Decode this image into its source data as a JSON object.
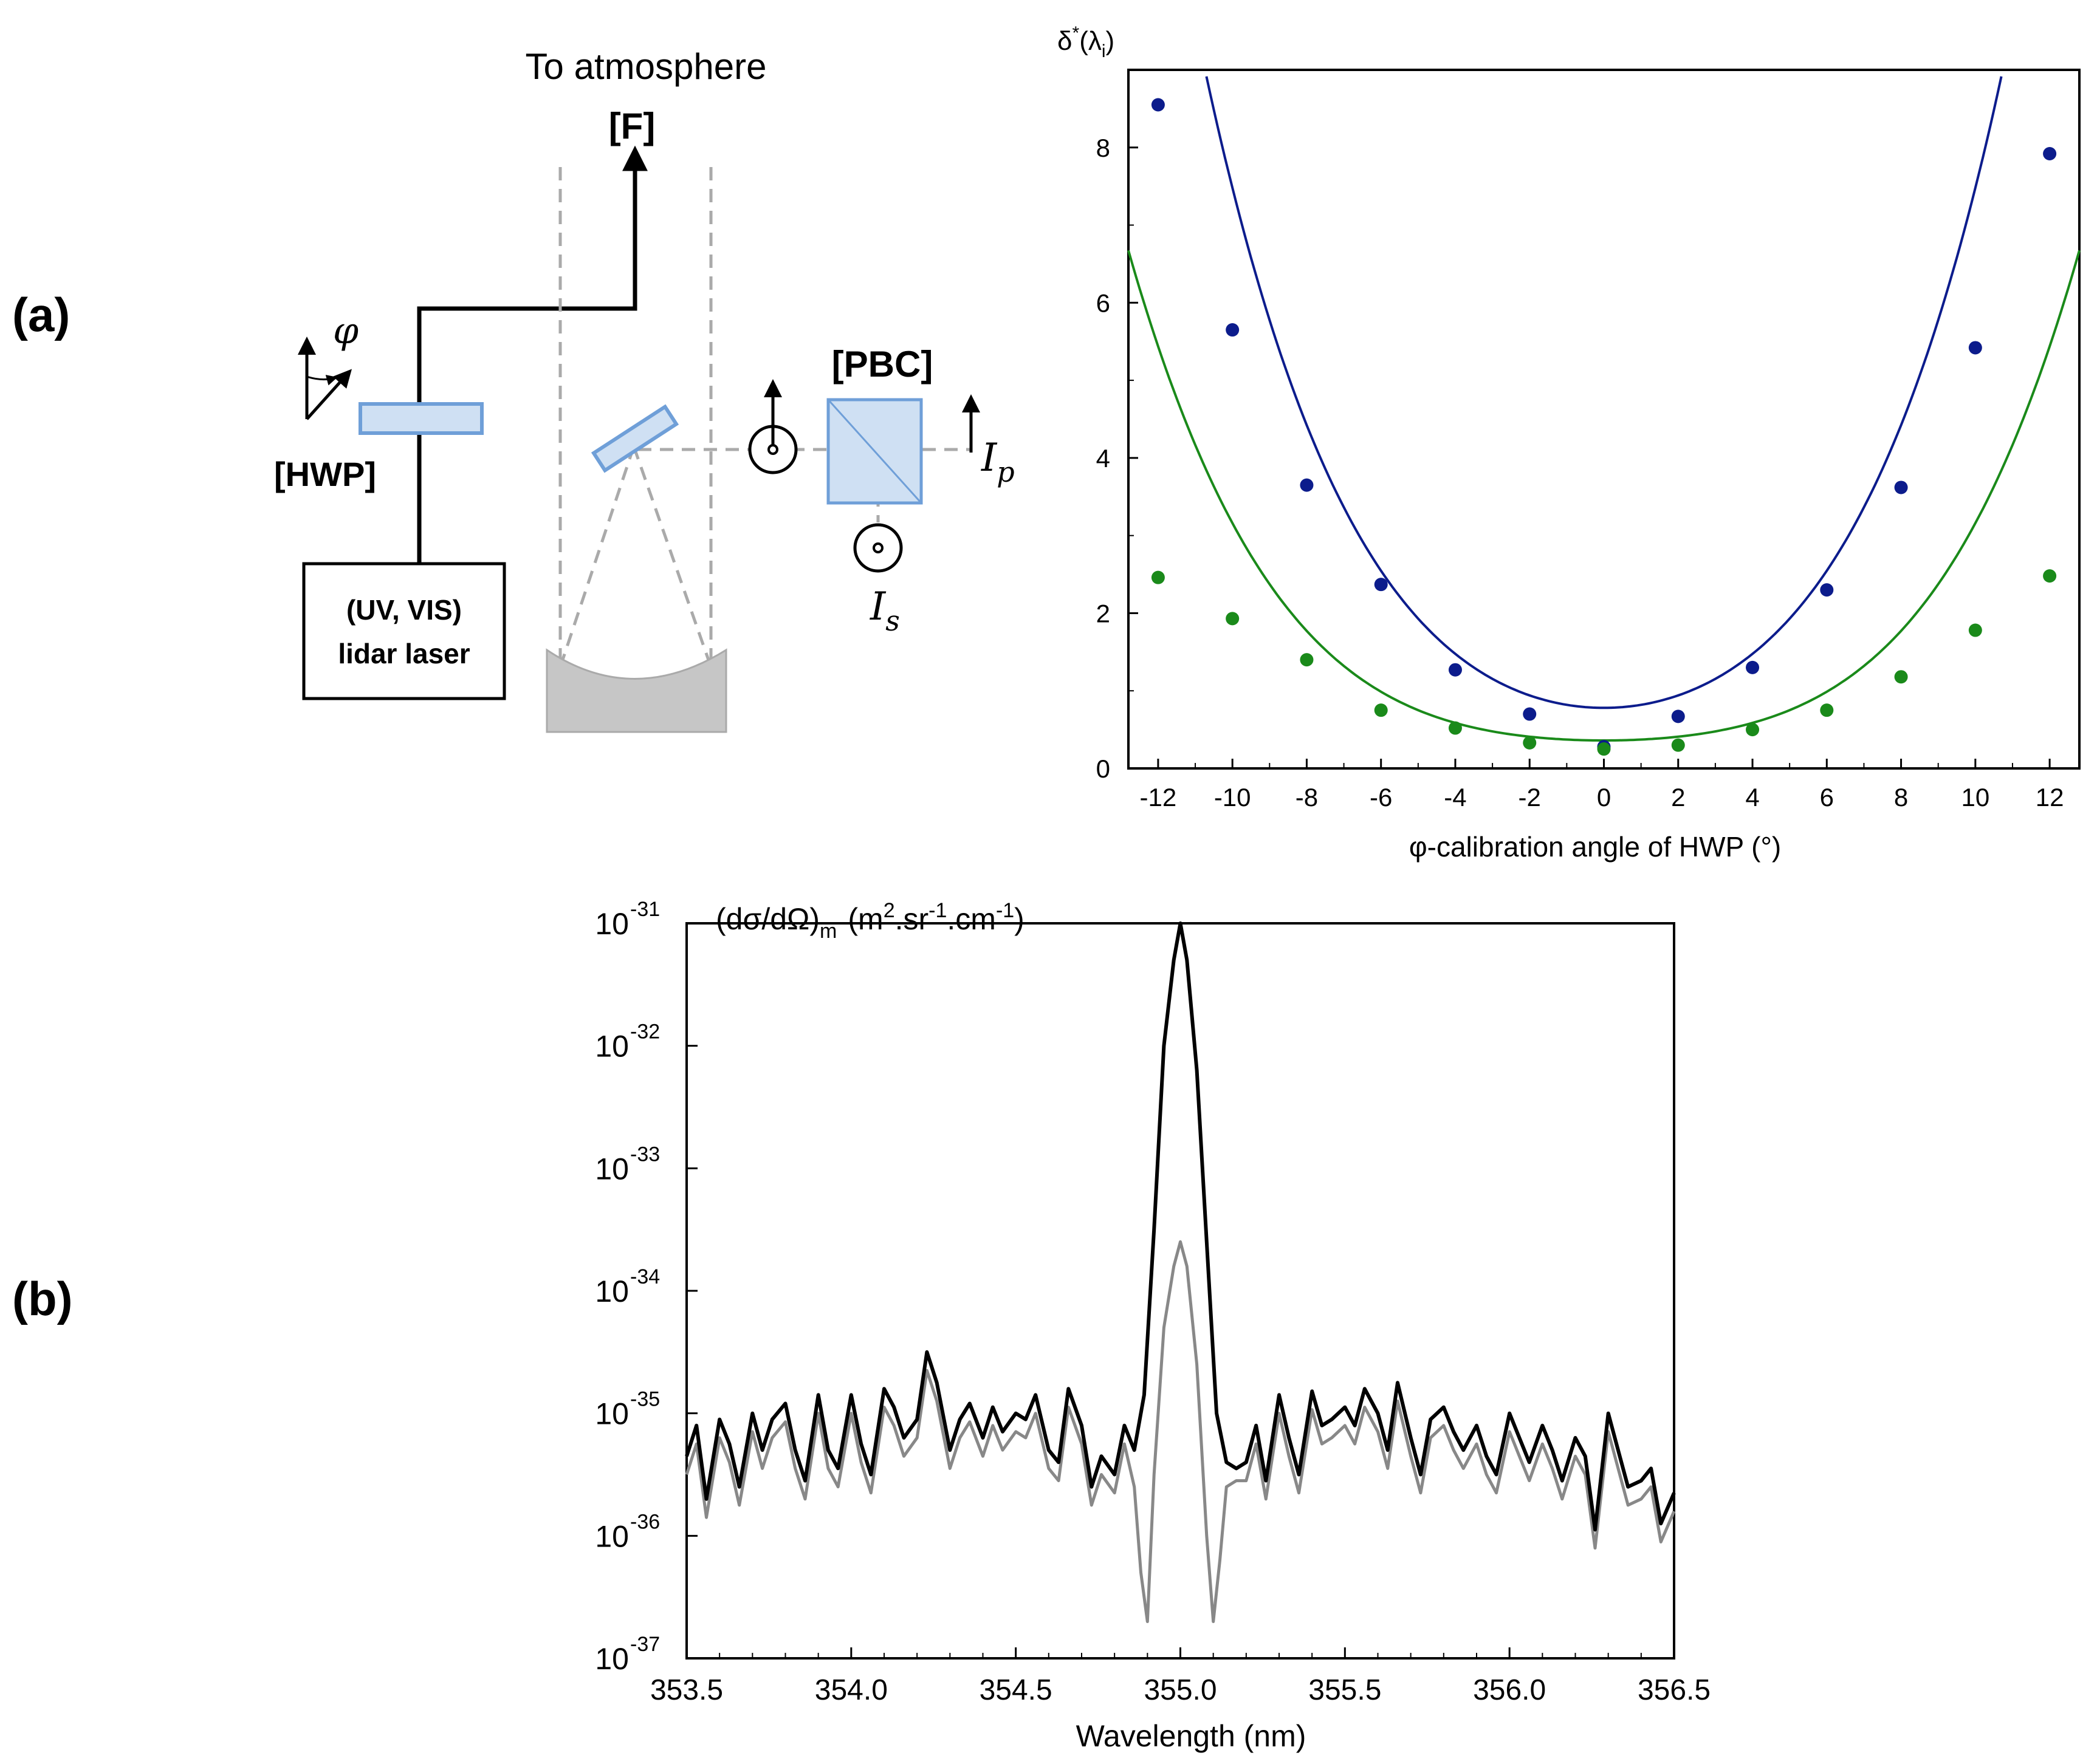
{
  "panels": {
    "a_label": "(a)",
    "b_label": "(b)"
  },
  "diagram": {
    "to_atmosphere": "To atmosphere",
    "f_label": "[F]",
    "hwp_label": "[HWP]",
    "pbc_label": "[PBC]",
    "laser_line1": "(UV, VIS)",
    "laser_line2": "lidar laser",
    "phi_symbol": "φ",
    "ip_main": "I",
    "ip_sub": "p",
    "is_main": "I",
    "is_sub": "s"
  },
  "chart_data": [
    {
      "type": "scatter",
      "id": "top",
      "title": "",
      "ylabel_main": "δ",
      "ylabel_sup": "*",
      "ylabel_rest": "(λ",
      "ylabel_sub": "i",
      "ylabel_close": ")",
      "xlabel": "φ-calibration angle of HWP (°)",
      "xlim": [
        -12.8,
        12.8
      ],
      "ylim": [
        0,
        9
      ],
      "xticks": [
        -12,
        -10,
        -8,
        -6,
        -4,
        -2,
        0,
        2,
        4,
        6,
        8,
        10,
        12
      ],
      "xtick_labels": [
        "-12",
        "-10",
        "-8",
        "-6",
        "-4",
        "-2",
        "0",
        "2",
        "4",
        "6",
        "8",
        "10",
        "12"
      ],
      "yticks": [
        0,
        2,
        4,
        6,
        8
      ],
      "ytick_labels": [
        "0",
        "2",
        "4",
        "6",
        "8"
      ],
      "series": [
        {
          "name": "blue",
          "color": "#0c1c8c",
          "x": [
            -12,
            -10,
            -8,
            -6,
            -4,
            -2,
            0,
            2,
            4,
            6,
            8,
            10,
            12
          ],
          "y": [
            8.55,
            5.65,
            3.65,
            2.37,
            1.27,
            0.7,
            0.28,
            0.67,
            1.3,
            2.3,
            3.62,
            5.42,
            7.92
          ],
          "fit": {
            "a": 0.00028,
            "b": 0.039,
            "c": 0.78
          }
        },
        {
          "name": "green",
          "color": "#1a8a1a",
          "x": [
            -12,
            -10,
            -8,
            -6,
            -4,
            -2,
            0,
            2,
            4,
            6,
            8,
            10,
            12
          ],
          "y": [
            2.46,
            1.93,
            1.4,
            0.75,
            0.52,
            0.33,
            0.25,
            0.3,
            0.5,
            0.75,
            1.18,
            1.78,
            2.48
          ],
          "fit": {
            "a": 0.000165,
            "b": 0.0115,
            "c": 0.36
          }
        }
      ]
    },
    {
      "type": "line",
      "id": "bottom",
      "title": "",
      "ylabel_main": "(dσ/dΩ)",
      "ylabel_sub": "m",
      "ylabel_units": "(m",
      "ylabel_units_2": ".sr",
      "ylabel_units_3": ".cm",
      "ylabel_units_close": ")",
      "ylabel_sup_2": "2",
      "ylabel_sup_m1": "-1",
      "xlabel": "Wavelength (nm)",
      "xlim": [
        353.5,
        356.5
      ],
      "yscale": "log",
      "ylim_exp": [
        -37,
        -31
      ],
      "xticks": [
        353.5,
        354.0,
        354.5,
        355.0,
        355.5,
        356.0,
        356.5
      ],
      "xtick_labels": [
        "353.5",
        "354.0",
        "354.5",
        "355.0",
        "355.5",
        "356.0",
        "356.5"
      ],
      "ytick_base": "10",
      "ytick_exps": [
        "-31",
        "-32",
        "-33",
        "-34",
        "-35",
        "-36",
        "-37"
      ],
      "series": [
        {
          "name": "black",
          "color": "#000000",
          "x": [
            353.5,
            353.53,
            353.56,
            353.6,
            353.63,
            353.66,
            353.7,
            353.73,
            353.76,
            353.8,
            353.83,
            353.86,
            353.9,
            353.93,
            353.96,
            354.0,
            354.03,
            354.06,
            354.1,
            354.13,
            354.16,
            354.2,
            354.23,
            354.26,
            354.3,
            354.33,
            354.36,
            354.4,
            354.43,
            354.46,
            354.5,
            354.53,
            354.56,
            354.6,
            354.63,
            354.66,
            354.7,
            354.73,
            354.76,
            354.8,
            354.83,
            354.86,
            354.89,
            354.92,
            354.95,
            354.98,
            355.0,
            355.02,
            355.05,
            355.08,
            355.11,
            355.14,
            355.17,
            355.2,
            355.23,
            355.26,
            355.3,
            355.33,
            355.36,
            355.4,
            355.43,
            355.46,
            355.5,
            355.53,
            355.56,
            355.6,
            355.63,
            355.66,
            355.7,
            355.73,
            355.76,
            355.8,
            355.83,
            355.86,
            355.9,
            355.93,
            355.96,
            356.0,
            356.03,
            356.06,
            356.1,
            356.13,
            356.16,
            356.2,
            356.23,
            356.26,
            356.3,
            356.33,
            356.36,
            356.4,
            356.43,
            356.46,
            356.5
          ],
          "y_exp": [
            -35.35,
            -35.1,
            -35.7,
            -35.05,
            -35.25,
            -35.6,
            -35.0,
            -35.3,
            -35.05,
            -34.92,
            -35.3,
            -35.55,
            -34.85,
            -35.3,
            -35.45,
            -34.85,
            -35.25,
            -35.5,
            -34.8,
            -34.95,
            -35.2,
            -35.05,
            -34.5,
            -34.75,
            -35.3,
            -35.05,
            -34.92,
            -35.2,
            -34.95,
            -35.15,
            -35.0,
            -35.05,
            -34.85,
            -35.3,
            -35.4,
            -34.8,
            -35.1,
            -35.6,
            -35.35,
            -35.5,
            -35.1,
            -35.3,
            -34.85,
            -33.5,
            -32.0,
            -31.3,
            -31.0,
            -31.3,
            -32.2,
            -33.6,
            -35.0,
            -35.4,
            -35.45,
            -35.4,
            -35.1,
            -35.55,
            -34.85,
            -35.2,
            -35.5,
            -34.82,
            -35.1,
            -35.05,
            -34.95,
            -35.1,
            -34.8,
            -35.0,
            -35.3,
            -34.75,
            -35.2,
            -35.5,
            -35.05,
            -34.95,
            -35.15,
            -35.3,
            -35.1,
            -35.35,
            -35.5,
            -35.0,
            -35.2,
            -35.4,
            -35.1,
            -35.3,
            -35.55,
            -35.2,
            -35.35,
            -35.95,
            -35.0,
            -35.3,
            -35.6,
            -35.55,
            -35.45,
            -35.9,
            -35.65
          ]
        },
        {
          "name": "gray",
          "color": "#888888",
          "x": [
            353.5,
            353.53,
            353.56,
            353.6,
            353.63,
            353.66,
            353.7,
            353.73,
            353.76,
            353.8,
            353.83,
            353.86,
            353.9,
            353.93,
            353.96,
            354.0,
            354.03,
            354.06,
            354.1,
            354.13,
            354.16,
            354.2,
            354.23,
            354.26,
            354.3,
            354.33,
            354.36,
            354.4,
            354.43,
            354.46,
            354.5,
            354.53,
            354.56,
            354.6,
            354.63,
            354.66,
            354.7,
            354.73,
            354.76,
            354.8,
            354.83,
            354.86,
            354.88,
            354.9,
            354.92,
            354.95,
            354.98,
            355.0,
            355.02,
            355.05,
            355.08,
            355.1,
            355.12,
            355.14,
            355.17,
            355.2,
            355.23,
            355.26,
            355.3,
            355.33,
            355.36,
            355.4,
            355.43,
            355.46,
            355.5,
            355.53,
            355.56,
            355.6,
            355.63,
            355.66,
            355.7,
            355.73,
            355.76,
            355.8,
            355.83,
            355.86,
            355.9,
            355.93,
            355.96,
            356.0,
            356.03,
            356.06,
            356.1,
            356.13,
            356.16,
            356.2,
            356.23,
            356.26,
            356.3,
            356.33,
            356.36,
            356.4,
            356.43,
            356.46,
            356.5
          ],
          "y_exp": [
            -35.5,
            -35.25,
            -35.85,
            -35.2,
            -35.4,
            -35.75,
            -35.15,
            -35.45,
            -35.2,
            -35.07,
            -35.45,
            -35.7,
            -35.0,
            -35.45,
            -35.6,
            -35.0,
            -35.4,
            -35.65,
            -34.95,
            -35.1,
            -35.35,
            -35.2,
            -34.65,
            -34.9,
            -35.45,
            -35.2,
            -35.07,
            -35.35,
            -35.1,
            -35.3,
            -35.15,
            -35.2,
            -35.0,
            -35.45,
            -35.55,
            -34.95,
            -35.25,
            -35.75,
            -35.5,
            -35.65,
            -35.25,
            -35.6,
            -36.3,
            -36.7,
            -35.5,
            -34.3,
            -33.8,
            -33.6,
            -33.8,
            -34.6,
            -36.0,
            -36.7,
            -36.2,
            -35.6,
            -35.55,
            -35.55,
            -35.25,
            -35.7,
            -35.0,
            -35.35,
            -35.65,
            -34.97,
            -35.25,
            -35.2,
            -35.1,
            -35.25,
            -34.95,
            -35.15,
            -35.45,
            -34.9,
            -35.35,
            -35.65,
            -35.2,
            -35.1,
            -35.3,
            -35.45,
            -35.25,
            -35.5,
            -35.65,
            -35.15,
            -35.35,
            -35.55,
            -35.25,
            -35.45,
            -35.7,
            -35.35,
            -35.5,
            -36.1,
            -35.15,
            -35.45,
            -35.75,
            -35.7,
            -35.6,
            -36.05,
            -35.8
          ]
        }
      ]
    }
  ]
}
